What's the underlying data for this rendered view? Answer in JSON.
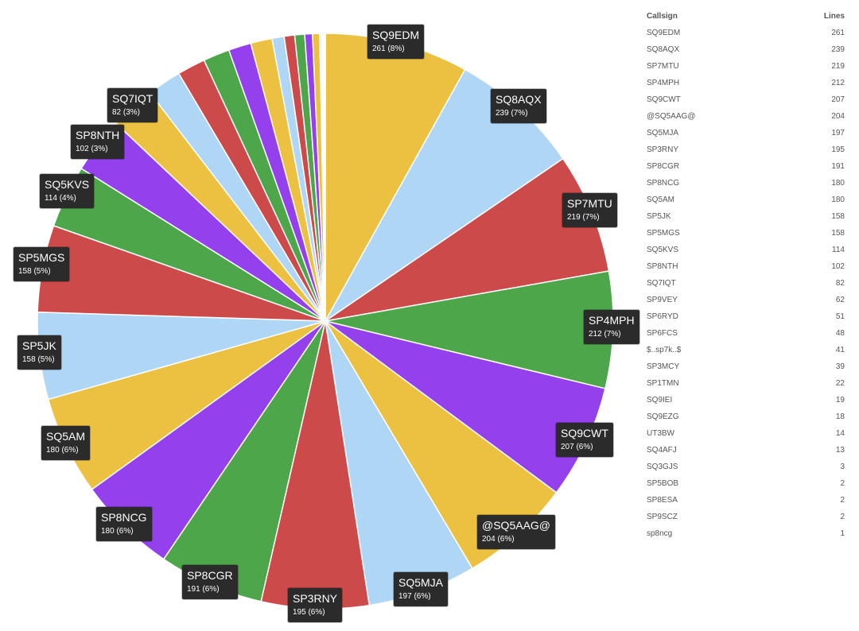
{
  "chart_data": {
    "type": "pie",
    "table_headers": {
      "callsign": "Callsign",
      "lines": "Lines"
    },
    "slices": [
      {
        "label": "SQ9EDM",
        "value": 261,
        "percent_label": "261 (8%)"
      },
      {
        "label": "SQ8AQX",
        "value": 239,
        "percent_label": "239 (7%)"
      },
      {
        "label": "SP7MTU",
        "value": 219,
        "percent_label": "219 (7%)"
      },
      {
        "label": "SP4MPH",
        "value": 212,
        "percent_label": "212 (7%)"
      },
      {
        "label": "SQ9CWT",
        "value": 207,
        "percent_label": "207 (6%)"
      },
      {
        "label": "@SQ5AAG@",
        "value": 204,
        "percent_label": "204 (6%)"
      },
      {
        "label": "SQ5MJA",
        "value": 197,
        "percent_label": "197 (6%)"
      },
      {
        "label": "SP3RNY",
        "value": 195,
        "percent_label": "195 (6%)"
      },
      {
        "label": "SP8CGR",
        "value": 191,
        "percent_label": "191 (6%)"
      },
      {
        "label": "SP8NCG",
        "value": 180,
        "percent_label": "180 (6%)"
      },
      {
        "label": "SQ5AM",
        "value": 180,
        "percent_label": "180 (6%)"
      },
      {
        "label": "SP5JK",
        "value": 158,
        "percent_label": "158 (5%)"
      },
      {
        "label": "SP5MGS",
        "value": 158,
        "percent_label": "158 (5%)"
      },
      {
        "label": "SQ5KVS",
        "value": 114,
        "percent_label": "114 (4%)"
      },
      {
        "label": "SP8NTH",
        "value": 102,
        "percent_label": "102 (3%)"
      },
      {
        "label": "SQ7IQT",
        "value": 82,
        "percent_label": "82 (3%)"
      },
      {
        "label": "SP9VEY",
        "value": 62
      },
      {
        "label": "SP6RYD",
        "value": 51
      },
      {
        "label": "SP6FCS",
        "value": 48
      },
      {
        "label": "$..sp7k..$",
        "value": 41
      },
      {
        "label": "SP3MCY",
        "value": 39
      },
      {
        "label": "SP1TMN",
        "value": 22
      },
      {
        "label": "SQ9IEI",
        "value": 19
      },
      {
        "label": "SQ9EZG",
        "value": 18
      },
      {
        "label": "UT3BW",
        "value": 14
      },
      {
        "label": "SQ4AFJ",
        "value": 13
      },
      {
        "label": "SQ3GJS",
        "value": 3
      },
      {
        "label": "SP5BOB",
        "value": 2
      },
      {
        "label": "SP8ESA",
        "value": 2
      },
      {
        "label": "SP9SCZ",
        "value": 2
      },
      {
        "label": "sp8ncg",
        "value": 1
      }
    ],
    "palette": [
      "#ecc142",
      "#afd6f5",
      "#cc4a4a",
      "#4ea64b",
      "#9440ed"
    ],
    "legend": "table-right"
  }
}
